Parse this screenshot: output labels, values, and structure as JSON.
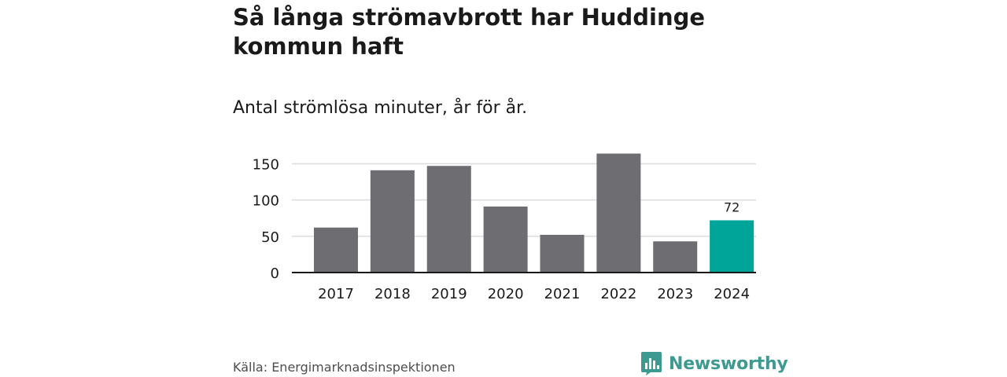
{
  "header": {
    "title": "Så långa strömavbrott har Huddinge kommun haft",
    "subtitle": "Antal strömlösa minuter, år för år."
  },
  "footer": {
    "source": "Källa: Energimarknadsinspektionen",
    "brand": "Newsworthy",
    "brand_icon": "bar-chart-logo-icon"
  },
  "colors": {
    "bar": "#6d6d72",
    "highlight": "#00a59a",
    "grid": "#dcdcdc",
    "axis": "#1a1a1a",
    "brand": "#3d9a91"
  },
  "chart_data": {
    "type": "bar",
    "title": "Så långa strömavbrott har Huddinge kommun haft",
    "subtitle": "Antal strömlösa minuter, år för år.",
    "categories": [
      "2017",
      "2018",
      "2019",
      "2020",
      "2021",
      "2022",
      "2023",
      "2024"
    ],
    "values": [
      62,
      141,
      147,
      91,
      52,
      164,
      43,
      72
    ],
    "highlight_index": 7,
    "data_labels": [
      {
        "index": 7,
        "text": "72"
      }
    ],
    "ylim": [
      0,
      170
    ],
    "yticks": [
      0,
      50,
      100,
      150
    ],
    "ytick_labels": [
      "0",
      "50",
      "100",
      "150"
    ],
    "grid": true,
    "legend": "none",
    "xlabel": "",
    "ylabel": ""
  }
}
